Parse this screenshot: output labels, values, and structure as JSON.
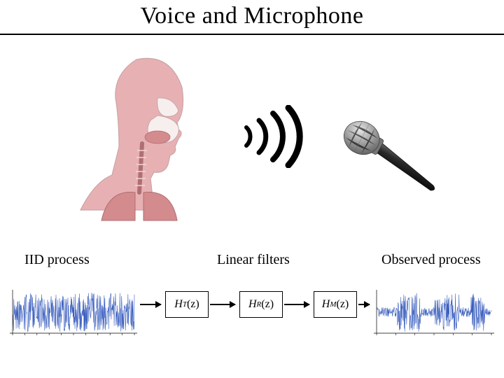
{
  "title": "Voice and Microphone",
  "labels": {
    "iid": "IID process",
    "linear": "Linear filters",
    "observed": "Observed process"
  },
  "filters": {
    "t": {
      "base": "H",
      "sub": "T",
      "arg": "(z)"
    },
    "r": {
      "base": "H",
      "sub": "R",
      "arg": "(z)"
    },
    "m": {
      "base": "H",
      "sub": "M",
      "arg": "(z)"
    }
  },
  "colors": {
    "title_border": "#000000",
    "head_fill": "#e7b1b4",
    "head_stroke": "#caa4a6",
    "throat_fill": "#f0d8d6",
    "organ_fill": "#d38b8e",
    "organ_stroke": "#b06e72",
    "sound_stroke": "#000000",
    "mic_grill": "#9a9a9a",
    "mic_grill_hi": "#d2d2d2",
    "mic_body": "#2a2a2a",
    "mic_body_hi": "#6a6a6a",
    "wave_iid": "#3b5fbf",
    "wave_obs": "#3b5fbf",
    "axis": "#000000",
    "block_border": "#000000",
    "arrow": "#000000",
    "bg": "#ffffff"
  },
  "diagram": {
    "type": "flowchart",
    "nodes": [
      {
        "id": "iid",
        "kind": "signal",
        "label": "IID process"
      },
      {
        "id": "ht",
        "kind": "filter",
        "label": "HT(z)"
      },
      {
        "id": "hr",
        "kind": "filter",
        "label": "HR(z)"
      },
      {
        "id": "hm",
        "kind": "filter",
        "label": "HM(z)"
      },
      {
        "id": "obs",
        "kind": "signal",
        "label": "Observed process"
      }
    ],
    "edges": [
      {
        "from": "iid",
        "to": "ht"
      },
      {
        "from": "ht",
        "to": "hr"
      },
      {
        "from": "hr",
        "to": "hm"
      },
      {
        "from": "hm",
        "to": "obs"
      }
    ]
  },
  "signals": {
    "iid": {
      "n_samples": 380,
      "amplitude": 1.0,
      "style": "noise",
      "color": "#3b5fbf",
      "line_width": 0.6,
      "x_ticks": 10,
      "axis_color": "#000000"
    },
    "observed": {
      "n_samples": 380,
      "style": "speech_envelope",
      "color": "#3b5fbf",
      "line_width": 0.6,
      "envelope_segments": [
        {
          "start": 0.0,
          "end": 0.18,
          "amp": 0.25
        },
        {
          "start": 0.18,
          "end": 0.38,
          "amp": 1.0
        },
        {
          "start": 0.38,
          "end": 0.5,
          "amp": 0.25
        },
        {
          "start": 0.5,
          "end": 0.58,
          "amp": 0.7
        },
        {
          "start": 0.58,
          "end": 0.72,
          "amp": 1.0
        },
        {
          "start": 0.72,
          "end": 0.82,
          "amp": 0.25
        },
        {
          "start": 0.82,
          "end": 0.94,
          "amp": 0.95
        },
        {
          "start": 0.94,
          "end": 1.0,
          "amp": 0.2
        }
      ],
      "x_ticks": 6,
      "axis_color": "#000000"
    }
  },
  "illustration": {
    "type": "infographic",
    "elements": [
      "human-head-cross-section",
      "sound-waves",
      "microphone"
    ]
  }
}
